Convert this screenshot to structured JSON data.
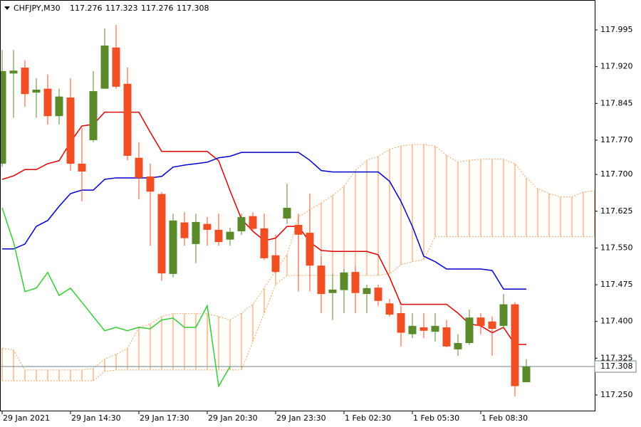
{
  "chart_data": {
    "type": "candlestick",
    "title": "CHFJPY,M30",
    "categories": [
      "29 Jan 2021",
      null,
      null,
      null,
      null,
      null,
      "29 Jan 14:30",
      null,
      null,
      null,
      null,
      null,
      "29 Jan 17:30",
      null,
      null,
      null,
      null,
      null,
      "29 Jan 20:30",
      null,
      null,
      null,
      null,
      null,
      "29 Jan 23:30",
      null,
      null,
      null,
      null,
      null,
      "1 Feb 02:30",
      null,
      null,
      null,
      null,
      null,
      "1 Feb 05:30",
      null,
      null,
      null,
      null,
      null,
      "1 Feb 08:30",
      null,
      null,
      null,
      null,
      null,
      null,
      null,
      null,
      null,
      null
    ],
    "open": [
      117.722,
      117.906,
      117.918,
      117.867,
      117.875,
      117.819,
      117.857,
      117.722,
      117.77,
      117.875,
      117.959,
      117.885,
      117.734,
      117.696,
      117.66,
      117.497,
      117.602,
      117.558,
      117.599,
      117.587,
      117.567,
      117.584,
      117.615,
      117.59,
      117.535,
      117.61,
      117.597,
      117.581,
      117.514,
      117.458,
      117.464,
      117.501,
      117.456,
      117.469,
      117.437,
      117.417,
      117.374,
      117.388,
      117.379,
      117.388,
      117.343,
      117.356,
      117.408,
      117.4,
      117.391,
      117.435,
      117.276,
      null,
      null,
      null,
      null,
      null,
      null
    ],
    "high": [
      117.954,
      117.954,
      117.933,
      117.896,
      117.904,
      117.875,
      117.896,
      117.795,
      117.911,
      117.998,
      118.005,
      117.918,
      117.766,
      117.722,
      117.664,
      117.62,
      117.623,
      117.62,
      117.613,
      117.62,
      117.591,
      117.62,
      117.623,
      117.62,
      117.577,
      117.681,
      117.62,
      117.661,
      117.533,
      117.497,
      117.507,
      117.512,
      117.475,
      117.475,
      117.446,
      117.432,
      117.417,
      117.417,
      117.417,
      117.403,
      117.374,
      117.424,
      117.417,
      117.41,
      117.456,
      117.439,
      117.323,
      null,
      null,
      null,
      null,
      null,
      null
    ],
    "low": [
      117.715,
      117.816,
      117.838,
      117.816,
      117.802,
      117.802,
      117.708,
      117.645,
      117.766,
      117.875,
      117.875,
      117.729,
      117.649,
      117.555,
      117.483,
      117.49,
      117.555,
      117.519,
      117.555,
      117.555,
      117.555,
      117.577,
      117.584,
      117.526,
      117.497,
      117.599,
      117.461,
      117.461,
      117.417,
      117.403,
      117.417,
      117.417,
      117.417,
      117.432,
      117.41,
      117.349,
      117.366,
      117.366,
      117.359,
      117.347,
      117.33,
      117.352,
      117.374,
      117.33,
      117.385,
      117.247,
      117.276,
      null,
      null,
      null,
      null,
      null,
      null
    ],
    "close": [
      117.911,
      117.912,
      117.864,
      117.873,
      117.819,
      117.859,
      117.722,
      117.706,
      117.87,
      117.963,
      117.879,
      117.738,
      117.693,
      117.665,
      117.498,
      117.606,
      117.57,
      117.603,
      117.587,
      117.562,
      117.583,
      117.613,
      117.589,
      117.529,
      117.501,
      117.632,
      117.577,
      117.514,
      117.456,
      117.465,
      117.5,
      117.458,
      117.468,
      117.442,
      117.414,
      117.377,
      117.391,
      117.381,
      117.391,
      117.349,
      117.356,
      117.408,
      117.391,
      117.385,
      117.435,
      117.268,
      117.308,
      null,
      null,
      null,
      null,
      null,
      null
    ],
    "up_color": "#5a8a2a",
    "down_color": "#f04e23",
    "series": [
      {
        "color": "#dd0000",
        "values": [
          117.69,
          117.697,
          117.71,
          117.71,
          117.722,
          117.728,
          117.766,
          117.799,
          117.802,
          117.827,
          117.827,
          117.827,
          117.827,
          117.786,
          117.747,
          117.747,
          117.747,
          117.747,
          117.747,
          117.728,
          117.667,
          117.609,
          117.584,
          117.565,
          117.57,
          117.594,
          117.594,
          117.562,
          117.545,
          117.543,
          117.543,
          117.543,
          117.543,
          117.536,
          117.49,
          117.435,
          117.435,
          117.435,
          117.435,
          117.435,
          117.417,
          117.395,
          117.391,
          117.377,
          117.388,
          117.353,
          117.353,
          null,
          null,
          null,
          null,
          null,
          null
        ]
      },
      {
        "color": "#0000cc",
        "values": [
          117.548,
          117.548,
          117.558,
          117.594,
          117.606,
          117.635,
          117.661,
          117.668,
          117.668,
          117.69,
          117.693,
          117.693,
          117.693,
          117.693,
          117.696,
          117.715,
          117.719,
          117.722,
          117.725,
          117.734,
          117.737,
          117.745,
          117.745,
          117.745,
          117.745,
          117.745,
          117.745,
          117.729,
          117.708,
          117.705,
          117.705,
          117.705,
          117.705,
          117.705,
          117.686,
          117.645,
          117.594,
          117.533,
          117.522,
          117.507,
          117.507,
          117.507,
          117.507,
          117.504,
          117.466,
          117.466,
          117.466,
          null,
          null,
          null,
          null,
          null,
          null
        ]
      },
      {
        "color": "#33cc33",
        "values": [
          117.632,
          117.562,
          117.461,
          117.468,
          117.5,
          117.453,
          117.468,
          117.439,
          117.41,
          117.381,
          117.388,
          117.381,
          117.388,
          117.385,
          117.403,
          117.407,
          117.388,
          117.388,
          117.432,
          117.268,
          117.308,
          null,
          null,
          null,
          null,
          null,
          null,
          null,
          null,
          null,
          null,
          null,
          null,
          null,
          null,
          null,
          null,
          null,
          null,
          null,
          null,
          null,
          null,
          null,
          null,
          null,
          null,
          null,
          null,
          null,
          null,
          null,
          null
        ]
      }
    ],
    "cloud": {
      "color": "#f4a460",
      "span_a": [
        117.345,
        117.342,
        117.301,
        117.301,
        117.301,
        117.301,
        117.301,
        117.301,
        117.304,
        117.323,
        117.333,
        117.345,
        117.388,
        117.395,
        117.41,
        117.416,
        117.416,
        117.416,
        117.416,
        117.41,
        117.403,
        117.417,
        117.435,
        117.468,
        117.504,
        117.536,
        117.613,
        117.628,
        117.642,
        117.657,
        117.676,
        117.708,
        117.729,
        117.737,
        117.751,
        117.758,
        117.761,
        117.761,
        117.758,
        117.739,
        117.725,
        117.729,
        117.731,
        117.731,
        117.731,
        117.722,
        117.693,
        117.671,
        117.661,
        117.654,
        117.654,
        117.664,
        117.667
      ],
      "span_b": [
        117.279,
        117.279,
        117.279,
        117.279,
        117.279,
        117.279,
        117.279,
        117.279,
        117.279,
        117.298,
        117.301,
        117.301,
        117.301,
        117.301,
        117.301,
        117.301,
        117.301,
        117.301,
        117.301,
        117.301,
        117.301,
        117.301,
        117.359,
        117.417,
        117.475,
        117.494,
        117.494,
        117.494,
        117.494,
        117.494,
        117.494,
        117.494,
        117.494,
        117.494,
        117.497,
        117.516,
        117.522,
        117.526,
        117.573,
        117.573,
        117.573,
        117.573,
        117.573,
        117.573,
        117.573,
        117.573,
        117.573,
        117.573,
        117.573,
        117.573,
        117.573,
        117.573,
        117.573
      ]
    },
    "price_line_color": "#708090",
    "ylim": [
      117.218,
      118.056
    ],
    "yticks": [
      117.995,
      {
        "value": 117.92,
        "label": "117.920"
      },
      117.845,
      {
        "value": 117.77,
        "label": "117.770"
      },
      {
        "value": 117.7,
        "label": "117.700"
      },
      117.625,
      {
        "value": 117.55,
        "label": "117.550"
      },
      117.475,
      {
        "value": 117.4,
        "label": "117.400"
      },
      117.325,
      {
        "value": 117.25,
        "label": "117.250"
      }
    ]
  }
}
